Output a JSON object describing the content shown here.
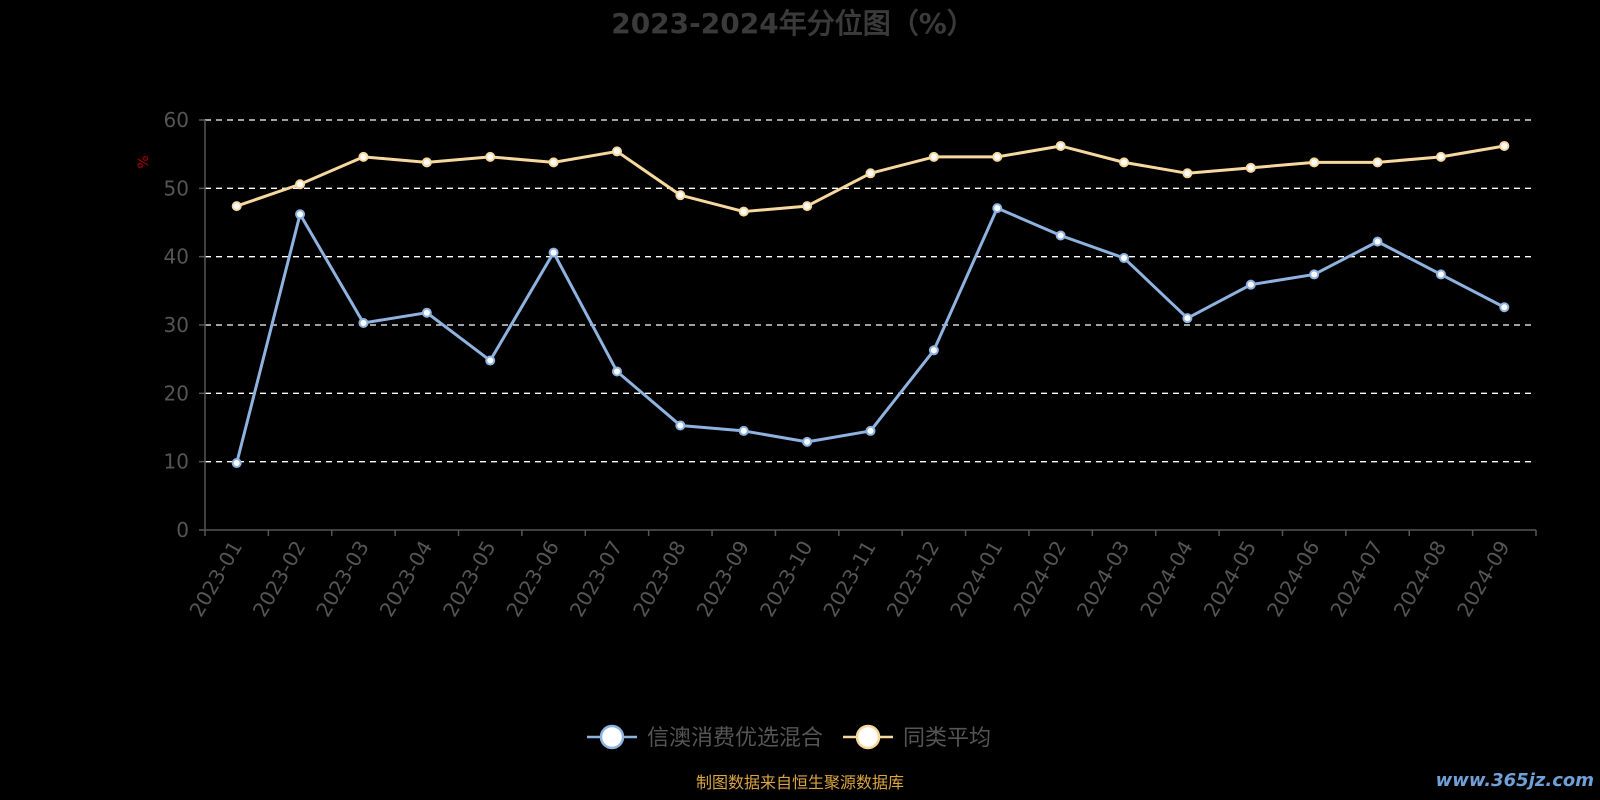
{
  "chart_data": {
    "type": "line",
    "title": "2023-2024年分位图（%）",
    "ylabel": "%",
    "ylim": [
      0,
      60
    ],
    "yticks": [
      0,
      10,
      20,
      30,
      40,
      50,
      60
    ],
    "grid": true,
    "legend_position": "bottom-center",
    "categories": [
      "2023-01",
      "2023-02",
      "2023-03",
      "2023-04",
      "2023-05",
      "2023-06",
      "2023-07",
      "2023-08",
      "2023-09",
      "2023-10",
      "2023-11",
      "2023-12",
      "2024-01",
      "2024-02",
      "2024-03",
      "2024-04",
      "2024-05",
      "2024-06",
      "2024-07",
      "2024-08",
      "2024-09"
    ],
    "series": [
      {
        "name": "信澳消费优选混合",
        "color": "#8fb3e0",
        "values": [
          9.8,
          46.2,
          30.3,
          31.8,
          24.8,
          40.6,
          23.2,
          15.3,
          14.5,
          12.9,
          14.5,
          26.3,
          47.1,
          43.1,
          39.8,
          31.0,
          35.9,
          37.4,
          42.2,
          37.4,
          32.6
        ]
      },
      {
        "name": "同类平均",
        "color": "#f7d9a0",
        "values": [
          47.4,
          50.6,
          54.6,
          53.8,
          54.6,
          53.8,
          55.4,
          49.0,
          46.6,
          47.4,
          52.2,
          54.6,
          54.6,
          56.2,
          53.8,
          52.2,
          53.0,
          53.8,
          53.8,
          54.6,
          56.2
        ]
      }
    ]
  },
  "footer": {
    "source": "制图数据来自恒生聚源数据库",
    "watermark": "www.365jz.com"
  }
}
